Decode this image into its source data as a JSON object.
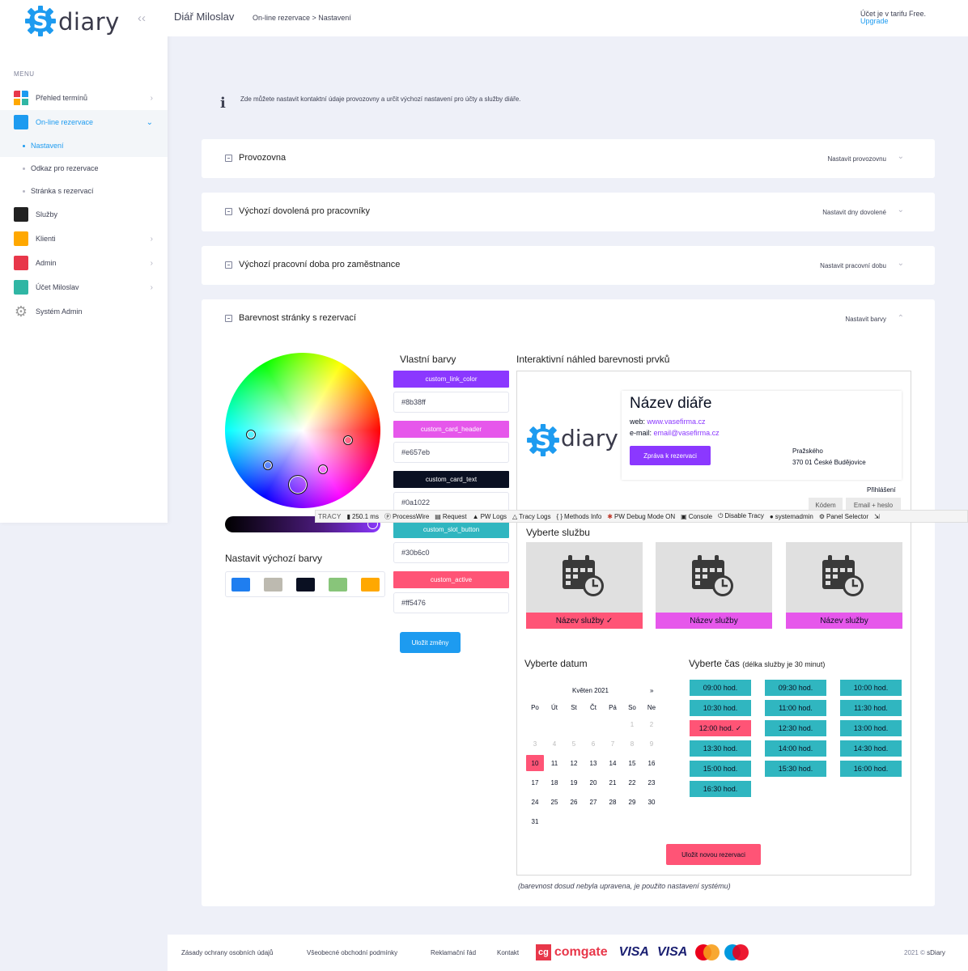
{
  "sidebar": {
    "logo_text": "diary",
    "menu_heading": "MENU",
    "items": [
      {
        "label": "Přehled termínů"
      },
      {
        "label": "On-line rezervace"
      },
      {
        "label": "Služby"
      },
      {
        "label": "Klienti"
      },
      {
        "label": "Admin"
      },
      {
        "label": "Účet Miloslav"
      },
      {
        "label": "Systém Admin"
      }
    ],
    "subitems": [
      {
        "label": "Nastavení"
      },
      {
        "label": "Odkaz pro rezervace"
      },
      {
        "label": "Stránka s rezervací"
      }
    ],
    "colors": {
      "services": "#212121",
      "clients": "#ffa800",
      "admin": "#e8374a",
      "account": "#30b6a4",
      "online": "#1d9bf0"
    }
  },
  "header": {
    "title": "Diář Miloslav",
    "breadcrumb": "On-line rezervace > Nastavení",
    "account_line": "Účet je v tarifu Free.",
    "upgrade_label": "Upgrade"
  },
  "info": {
    "icon": "info-icon",
    "text": "Zde můžete nastavit kontaktní údaje provozovny a určit výchozí nastavení pro účty a služby diáře."
  },
  "cards": [
    {
      "title": "Provozovna",
      "action": "Nastavit provozovnu"
    },
    {
      "title": "Výchozí dovolená pro pracovníky",
      "action": "Nastavit dny dovolené"
    },
    {
      "title": "Výchozí pracovní doba pro zaměstnance",
      "action": "Nastavit pracovní dobu"
    },
    {
      "title": "Barevnost stránky s rezervací",
      "action": "Nastavit barvy"
    }
  ],
  "colors_section": {
    "defaults_label": "Nastavit výchozí barvy",
    "default_swatches": [
      "#1f7ef0",
      "#bdbab0",
      "#0a1022",
      "#88c57a",
      "#ffa800"
    ],
    "custom_label": "Vlastní barvy",
    "custom": [
      {
        "name": "custom_link_color",
        "value": "#8b38ff"
      },
      {
        "name": "custom_card_header",
        "value": "#e657eb"
      },
      {
        "name": "custom_card_text",
        "value": "#0a1022"
      },
      {
        "name": "custom_slot_button",
        "value": "#30b6c0"
      },
      {
        "name": "custom_active",
        "value": "#ff5476"
      }
    ],
    "save_label": "Uložit změny"
  },
  "preview": {
    "label": "Interaktivní náhled barevnosti prvků",
    "logo_text": "diary",
    "diary_name": "Název diáře",
    "web_label": "web:",
    "web_value": "www.vasefirma.cz",
    "email_label": "e-mail:",
    "email_value": "email@vasefirma.cz",
    "message_button": "Zpráva k rezervaci",
    "address_line1": "Pražského",
    "address_line2": "370 01 České Budějovice",
    "login_label": "Přihlášení",
    "login_tabs": [
      "Kódem",
      "Email + heslo"
    ],
    "services_title": "Vyberte službu",
    "services": [
      {
        "label": "Název služby ✓",
        "selected": true
      },
      {
        "label": "Název služby",
        "selected": false
      },
      {
        "label": "Název služby",
        "selected": false
      }
    ],
    "date_title": "Vyberte datum",
    "calendar": {
      "month": "Květen 2021",
      "next": "»",
      "weekdays": [
        "Po",
        "Út",
        "St",
        "Čt",
        "Pá",
        "So",
        "Ne"
      ],
      "days": [
        [
          "",
          "",
          "",
          "",
          "",
          "1",
          "2"
        ],
        [
          "3",
          "4",
          "5",
          "6",
          "7",
          "8",
          "9"
        ],
        [
          "10",
          "11",
          "12",
          "13",
          "14",
          "15",
          "16"
        ],
        [
          "17",
          "18",
          "19",
          "20",
          "21",
          "22",
          "23"
        ],
        [
          "24",
          "25",
          "26",
          "27",
          "28",
          "29",
          "30"
        ],
        [
          "31",
          "",
          "",
          "",
          "",
          "",
          ""
        ]
      ],
      "selected_day": "10",
      "first_enabled_day": 10
    },
    "time_title": "Vyberte čas",
    "time_note": "(délka služby je 30 minut)",
    "slots": [
      "09:00 hod.",
      "09:30 hod.",
      "10:00 hod.",
      "10:30 hod.",
      "11:00 hod.",
      "11:30 hod.",
      "12:00 hod. ✓",
      "12:30 hod.",
      "13:00 hod.",
      "13:30 hod.",
      "14:00 hod.",
      "14:30 hod.",
      "15:00 hod.",
      "15:30 hod.",
      "16:00 hod.",
      "16:30 hod."
    ],
    "selected_slot": 6,
    "new_reservation": "Uložit novou rezervaci",
    "note": "(barevnost dosud nebyla upravena, je použito nastavení systému)"
  },
  "tracy": {
    "brand": "TRACY",
    "items": [
      "250.1 ms",
      "ProcessWire",
      "Request",
      "PW Logs",
      "Tracy Logs",
      "Methods Info",
      "PW Debug Mode ON",
      "Console",
      "Disable Tracy",
      "systemadmin",
      "Panel Selector"
    ],
    "icons": [
      "bar-chart-icon",
      "processwire-icon",
      "request-icon",
      "pw-logs-icon",
      "tracy-logs-icon",
      "methods-icon",
      "bug-icon",
      "console-icon",
      "power-icon",
      "user-icon",
      "gear-icon"
    ]
  },
  "footer": {
    "links": [
      "Zásady ochrany osobních údajů",
      "Všeobecné obchodní podmínky",
      "Reklamační řád",
      "Kontakt"
    ],
    "comgate": "comgate",
    "cg": "cg",
    "visa": "VISA",
    "visa2": "VISA",
    "copyright_year": "2021 ©",
    "copyright_name": "sDiary"
  }
}
